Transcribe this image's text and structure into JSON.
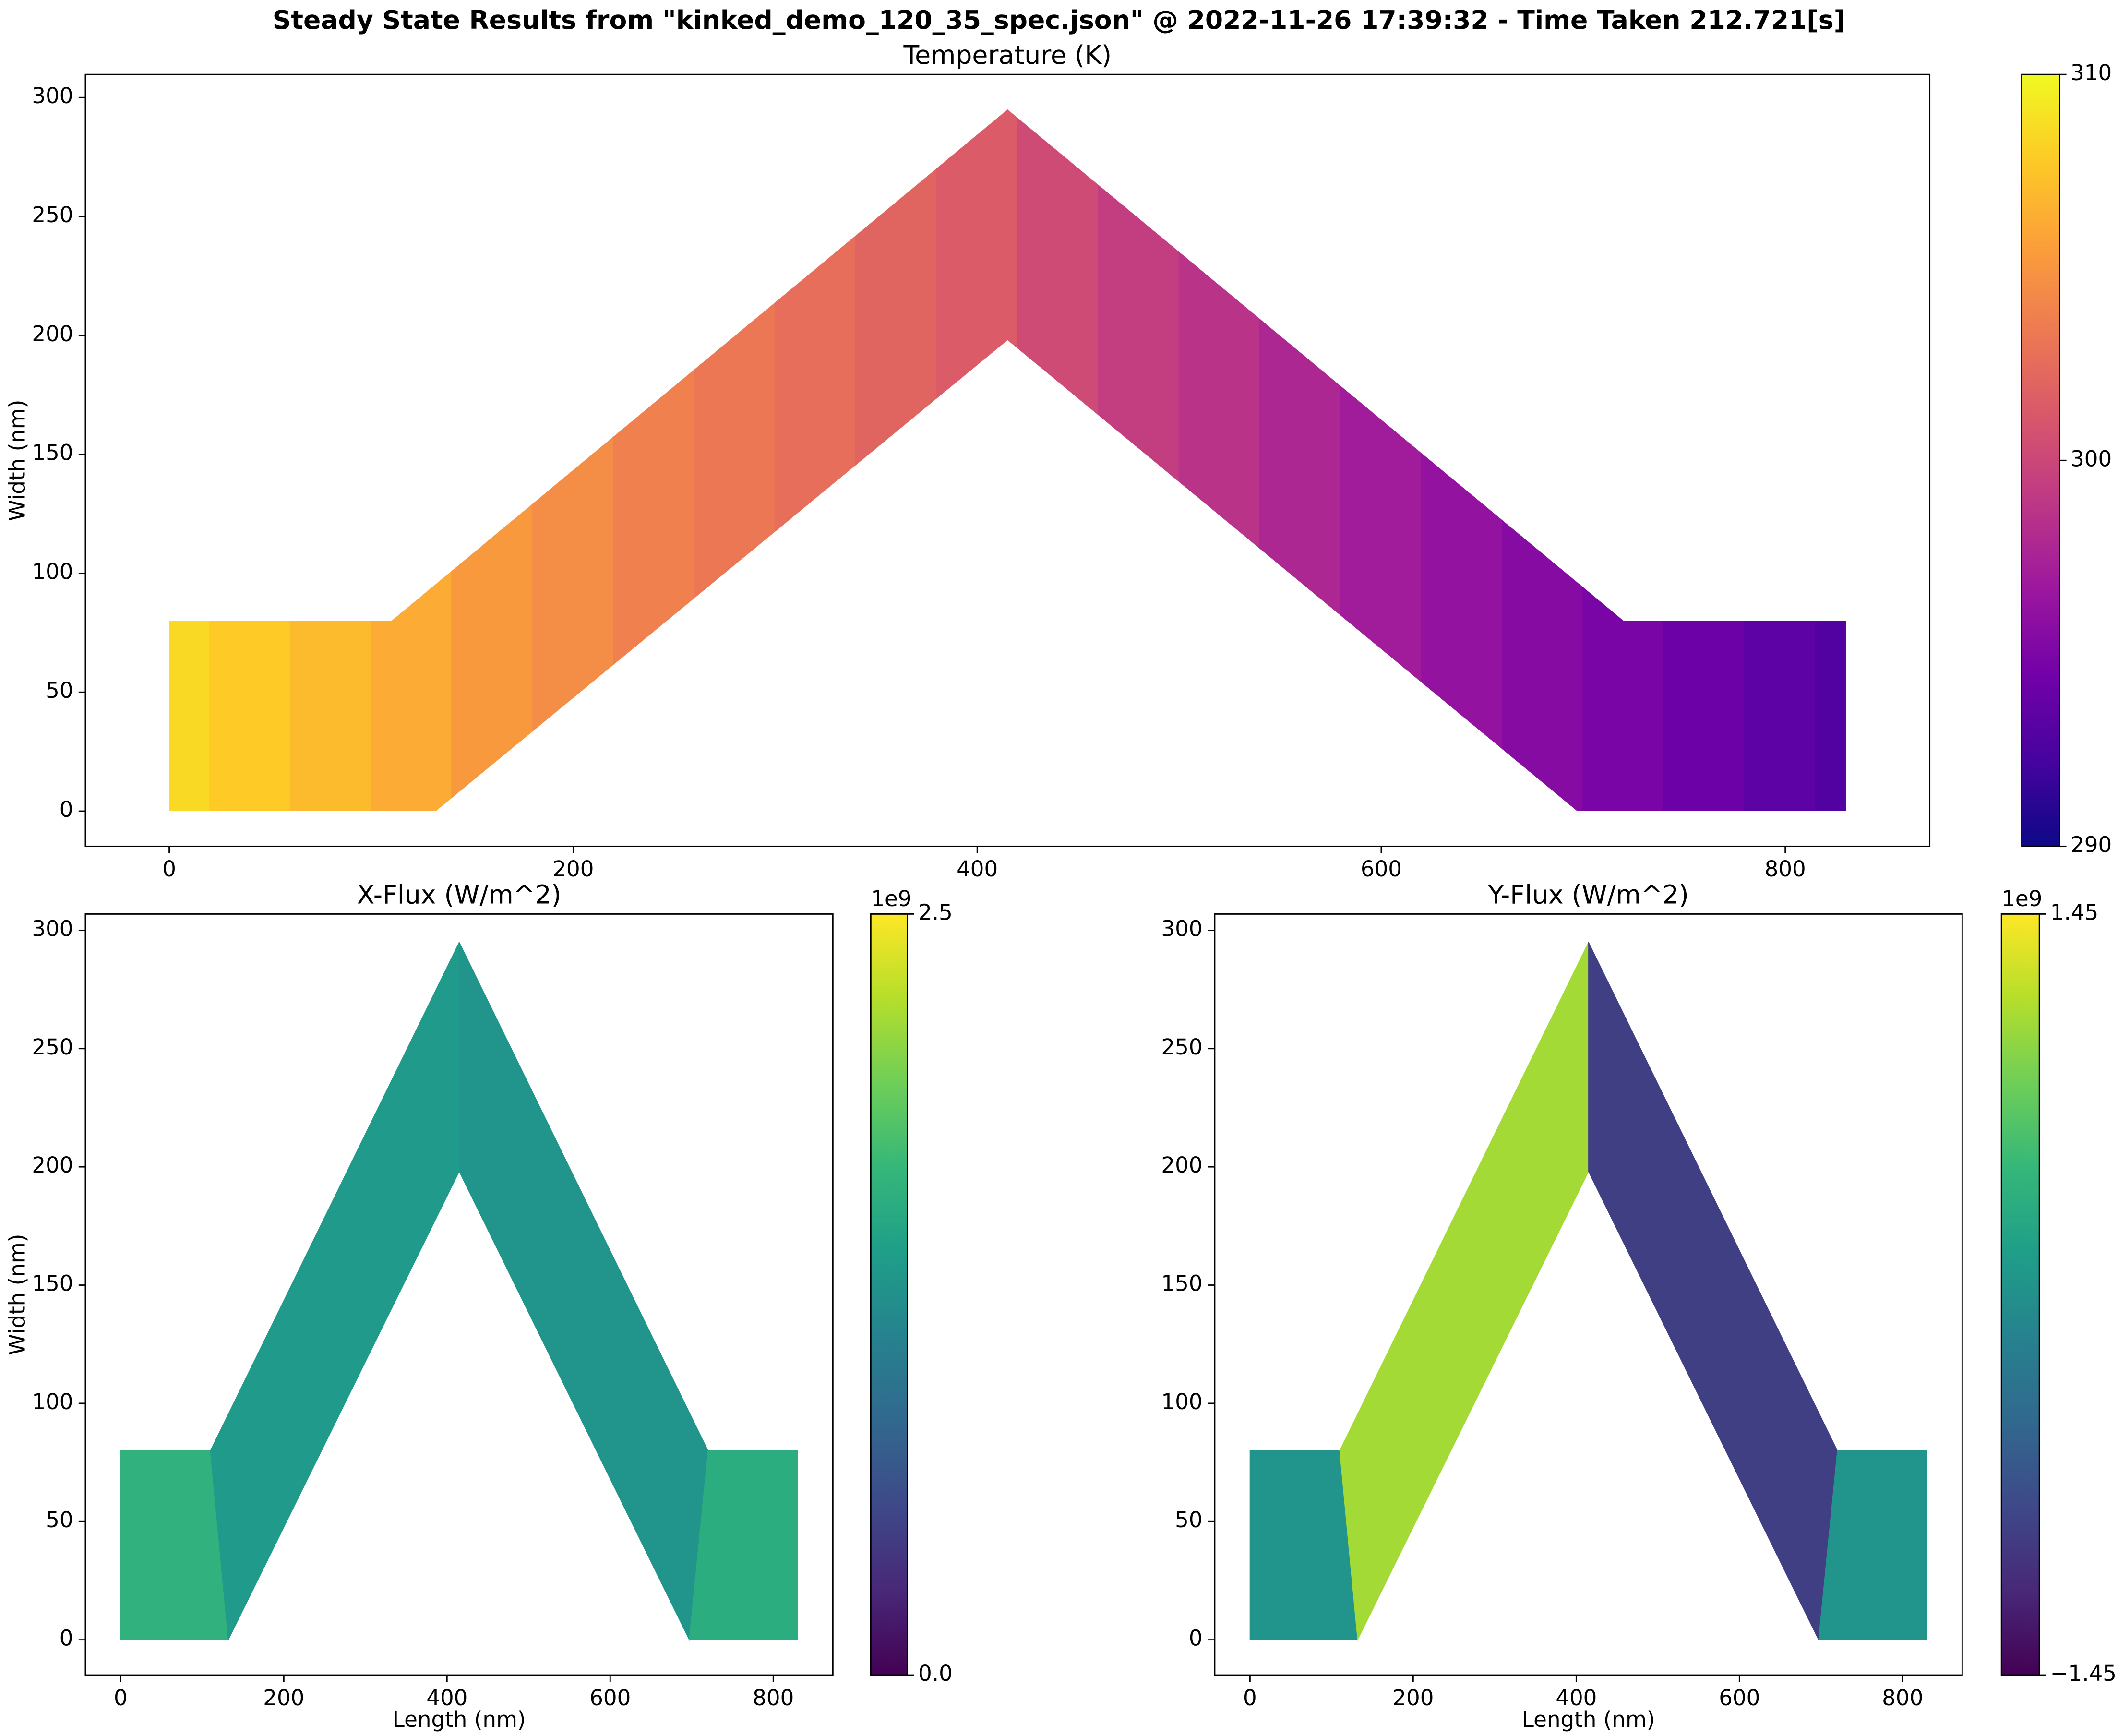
{
  "title": "Steady State Results from \"kinked_demo_120_35_spec.json\" @ 2022-11-26 17:39:32 - Time Taken 212.721[s]",
  "chart_data": [
    {
      "type": "mesh",
      "title": "Temperature (K)",
      "ylabel": "Width (nm)",
      "xlim": [
        -41.5,
        871.5
      ],
      "ylim": [
        -14.8,
        309.7
      ],
      "xticks": [
        0,
        200,
        400,
        600,
        800
      ],
      "yticks": [
        0,
        50,
        100,
        150,
        200,
        250,
        300
      ],
      "outline": {
        "x": [
          0,
          0,
          110,
          415,
          720,
          830,
          830,
          697,
          415,
          132
        ],
        "y": [
          0,
          80,
          80,
          295,
          80,
          80,
          0,
          0,
          198,
          0
        ]
      },
      "field": {
        "x": [
          0,
          40,
          80,
          120,
          160,
          200,
          240,
          280,
          320,
          360,
          400,
          440,
          480,
          520,
          560,
          600,
          640,
          680,
          720,
          760,
          800,
          830
        ],
        "values": [
          308.5,
          307.8,
          307,
          306.2,
          305.2,
          304.5,
          303.8,
          303.2,
          302.6,
          302,
          301.4,
          300.3,
          299.4,
          298.6,
          297.8,
          297,
          296.2,
          295.5,
          294.8,
          294.1,
          293.4,
          292.8
        ]
      },
      "colorbar": {
        "colormap": "plasma",
        "lim": [
          290,
          310
        ],
        "ticks": [
          290,
          300,
          310
        ]
      }
    },
    {
      "type": "mesh",
      "title": "X-Flux (W/m^2)",
      "xlabel": "Length (nm)",
      "ylabel": "Width (nm)",
      "xlim": [
        -43.2,
        873
      ],
      "ylim": [
        -14.9,
        306.9
      ],
      "xticks": [
        0,
        200,
        400,
        600,
        800
      ],
      "yticks": [
        0,
        50,
        100,
        150,
        200,
        250,
        300
      ],
      "regions": [
        {
          "x": [
            0,
            0,
            110,
            132
          ],
          "y": [
            0,
            80,
            80,
            0
          ],
          "value": 1.6
        },
        {
          "x": [
            110,
            415,
            415,
            132
          ],
          "y": [
            80,
            295,
            198,
            0
          ],
          "value": 1.35
        },
        {
          "x": [
            415,
            720,
            697,
            415
          ],
          "y": [
            295,
            80,
            0,
            198
          ],
          "value": 1.3
        },
        {
          "x": [
            720,
            830,
            830,
            697
          ],
          "y": [
            80,
            80,
            0,
            0
          ],
          "value": 1.55
        }
      ],
      "colorbar": {
        "colormap": "viridis",
        "lim": [
          0,
          2.5
        ],
        "ticks": [
          {
            "value": 0,
            "label": "0.0"
          },
          2.5
        ],
        "offset_label": "1e9"
      }
    },
    {
      "type": "mesh",
      "title": "Y-Flux (W/m^2)",
      "xlabel": "Length (nm)",
      "xlim": [
        -43.2,
        873
      ],
      "ylim": [
        -14.9,
        306.9
      ],
      "xticks": [
        0,
        200,
        400,
        600,
        800
      ],
      "yticks": [
        0,
        50,
        100,
        150,
        200,
        250,
        300
      ],
      "regions": [
        {
          "x": [
            0,
            0,
            110,
            132
          ],
          "y": [
            0,
            80,
            80,
            0
          ],
          "value": 0.05
        },
        {
          "x": [
            110,
            415,
            415,
            132
          ],
          "y": [
            80,
            295,
            198,
            0
          ],
          "value": 1.05
        },
        {
          "x": [
            415,
            720,
            697,
            415
          ],
          "y": [
            295,
            80,
            0,
            198
          ],
          "value": -0.9
        },
        {
          "x": [
            720,
            830,
            830,
            697
          ],
          "y": [
            80,
            80,
            0,
            0
          ],
          "value": 0.05
        }
      ],
      "colorbar": {
        "colormap": "viridis",
        "lim": [
          -1.45,
          1.45
        ],
        "ticks": [
          {
            "value": -1.45,
            "label": "−1.45"
          },
          1.45
        ],
        "offset_label": "1e9"
      }
    }
  ]
}
